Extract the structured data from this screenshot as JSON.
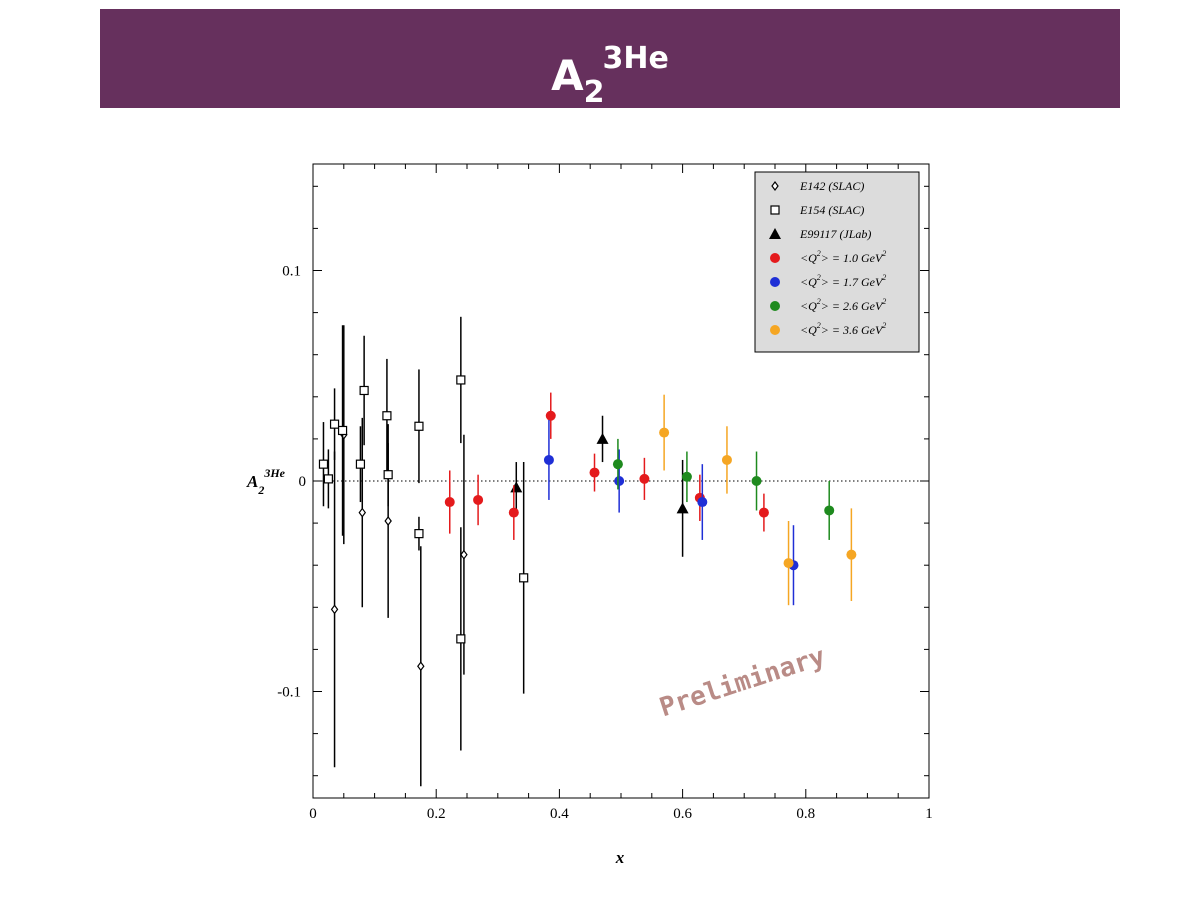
{
  "header": {
    "title_main": "A",
    "title_sub": "2",
    "title_sup": "3He"
  },
  "colors": {
    "banner": "#66305d",
    "q1": "#e41a1c",
    "q17": "#1f2fd6",
    "q26": "#1e8a1e",
    "q36": "#f5a623",
    "legacy": "#000000",
    "legend_bg": "#dcdcdc"
  },
  "watermark": "Preliminary",
  "chart_data": {
    "type": "scatter",
    "xlabel": "x",
    "ylabel_main": "A",
    "ylabel_sub": "2",
    "ylabel_sup": "3He",
    "xlim": [
      0,
      1
    ],
    "ylim": [
      -0.15,
      0.15
    ],
    "x_ticks": [
      0,
      0.2,
      0.4,
      0.6,
      0.8,
      1
    ],
    "x_tick_labels": [
      "0",
      "0.2",
      "0.4",
      "0.6",
      "0.8",
      "1"
    ],
    "y_ticks": [
      0.1,
      0,
      -0.1
    ],
    "y_tick_labels": [
      "0.1",
      "0",
      "-0.1"
    ],
    "zero_line": "dotted",
    "legend_position": "top-right",
    "series": [
      {
        "name": "E142 (SLAC)",
        "marker": "open-diamond",
        "color": "#000000",
        "points": [
          {
            "x": 0.035,
            "y": -0.061,
            "err": 0.075
          },
          {
            "x": 0.05,
            "y": 0.022,
            "err": 0.052
          },
          {
            "x": 0.08,
            "y": -0.015,
            "err": 0.045
          },
          {
            "x": 0.122,
            "y": -0.019,
            "err": 0.046
          },
          {
            "x": 0.175,
            "y": -0.088,
            "err": 0.057
          },
          {
            "x": 0.245,
            "y": -0.035,
            "err": 0.057
          }
        ]
      },
      {
        "name": "E154 (SLAC)",
        "marker": "open-square",
        "color": "#000000",
        "points": [
          {
            "x": 0.017,
            "y": 0.008,
            "err": 0.02
          },
          {
            "x": 0.025,
            "y": 0.001,
            "err": 0.014
          },
          {
            "x": 0.035,
            "y": 0.027,
            "err": 0.017
          },
          {
            "x": 0.048,
            "y": 0.024,
            "err": 0.05
          },
          {
            "x": 0.077,
            "y": 0.008,
            "err": 0.018
          },
          {
            "x": 0.083,
            "y": 0.043,
            "err": 0.026
          },
          {
            "x": 0.12,
            "y": 0.031,
            "err": 0.027
          },
          {
            "x": 0.122,
            "y": 0.003,
            "err": 0.015
          },
          {
            "x": 0.172,
            "y": 0.026,
            "err": 0.027
          },
          {
            "x": 0.172,
            "y": -0.025,
            "err": 0.008
          },
          {
            "x": 0.24,
            "y": 0.048,
            "err": 0.03
          },
          {
            "x": 0.24,
            "y": -0.075,
            "err": 0.053
          },
          {
            "x": 0.342,
            "y": -0.046,
            "err": 0.055
          }
        ]
      },
      {
        "name": "E99117 (JLab)",
        "marker": "filled-triangle",
        "color": "#000000",
        "points": [
          {
            "x": 0.33,
            "y": -0.003,
            "err": 0.012
          },
          {
            "x": 0.47,
            "y": 0.02,
            "err": 0.011
          },
          {
            "x": 0.6,
            "y": -0.013,
            "err": 0.023
          }
        ]
      },
      {
        "name": "<Q2> = 1.0 GeV2",
        "label": "<Q",
        "label_sup": "2",
        "label_mid": "> = 1.0 GeV",
        "label_end_sup": "2",
        "marker": "filled-circle",
        "color": "#e41a1c",
        "points": [
          {
            "x": 0.222,
            "y": -0.01,
            "err": 0.015
          },
          {
            "x": 0.268,
            "y": -0.009,
            "err": 0.012
          },
          {
            "x": 0.326,
            "y": -0.015,
            "err": 0.013
          },
          {
            "x": 0.386,
            "y": 0.031,
            "err": 0.011
          },
          {
            "x": 0.457,
            "y": 0.004,
            "err": 0.009
          },
          {
            "x": 0.538,
            "y": 0.001,
            "err": 0.01
          },
          {
            "x": 0.628,
            "y": -0.008,
            "err": 0.011
          },
          {
            "x": 0.732,
            "y": -0.015,
            "err": 0.009
          }
        ]
      },
      {
        "name": "<Q2> = 1.7 GeV2",
        "label": "<Q",
        "label_sup": "2",
        "label_mid": "> = 1.7 GeV",
        "label_end_sup": "2",
        "marker": "filled-circle",
        "color": "#1f2fd6",
        "points": [
          {
            "x": 0.383,
            "y": 0.01,
            "err": 0.019
          },
          {
            "x": 0.497,
            "y": 0.0,
            "err": 0.015
          },
          {
            "x": 0.632,
            "y": -0.01,
            "err": 0.018
          },
          {
            "x": 0.78,
            "y": -0.04,
            "err": 0.019
          }
        ]
      },
      {
        "name": "<Q2> = 2.6 GeV2",
        "label": "<Q",
        "label_sup": "2",
        "label_mid": "> = 2.6 GeV",
        "label_end_sup": "2",
        "marker": "filled-circle",
        "color": "#1e8a1e",
        "points": [
          {
            "x": 0.495,
            "y": 0.008,
            "err": 0.012
          },
          {
            "x": 0.607,
            "y": 0.002,
            "err": 0.012
          },
          {
            "x": 0.72,
            "y": 0.0,
            "err": 0.014
          },
          {
            "x": 0.838,
            "y": -0.014,
            "err": 0.014
          }
        ]
      },
      {
        "name": "<Q2> = 3.6 GeV2",
        "label": "<Q",
        "label_sup": "2",
        "label_mid": "> = 3.6 GeV",
        "label_end_sup": "2",
        "marker": "filled-circle",
        "color": "#f5a623",
        "points": [
          {
            "x": 0.57,
            "y": 0.023,
            "err": 0.018
          },
          {
            "x": 0.672,
            "y": 0.01,
            "err": 0.016
          },
          {
            "x": 0.772,
            "y": -0.039,
            "err": 0.02
          },
          {
            "x": 0.874,
            "y": -0.035,
            "err": 0.022
          }
        ]
      }
    ]
  }
}
